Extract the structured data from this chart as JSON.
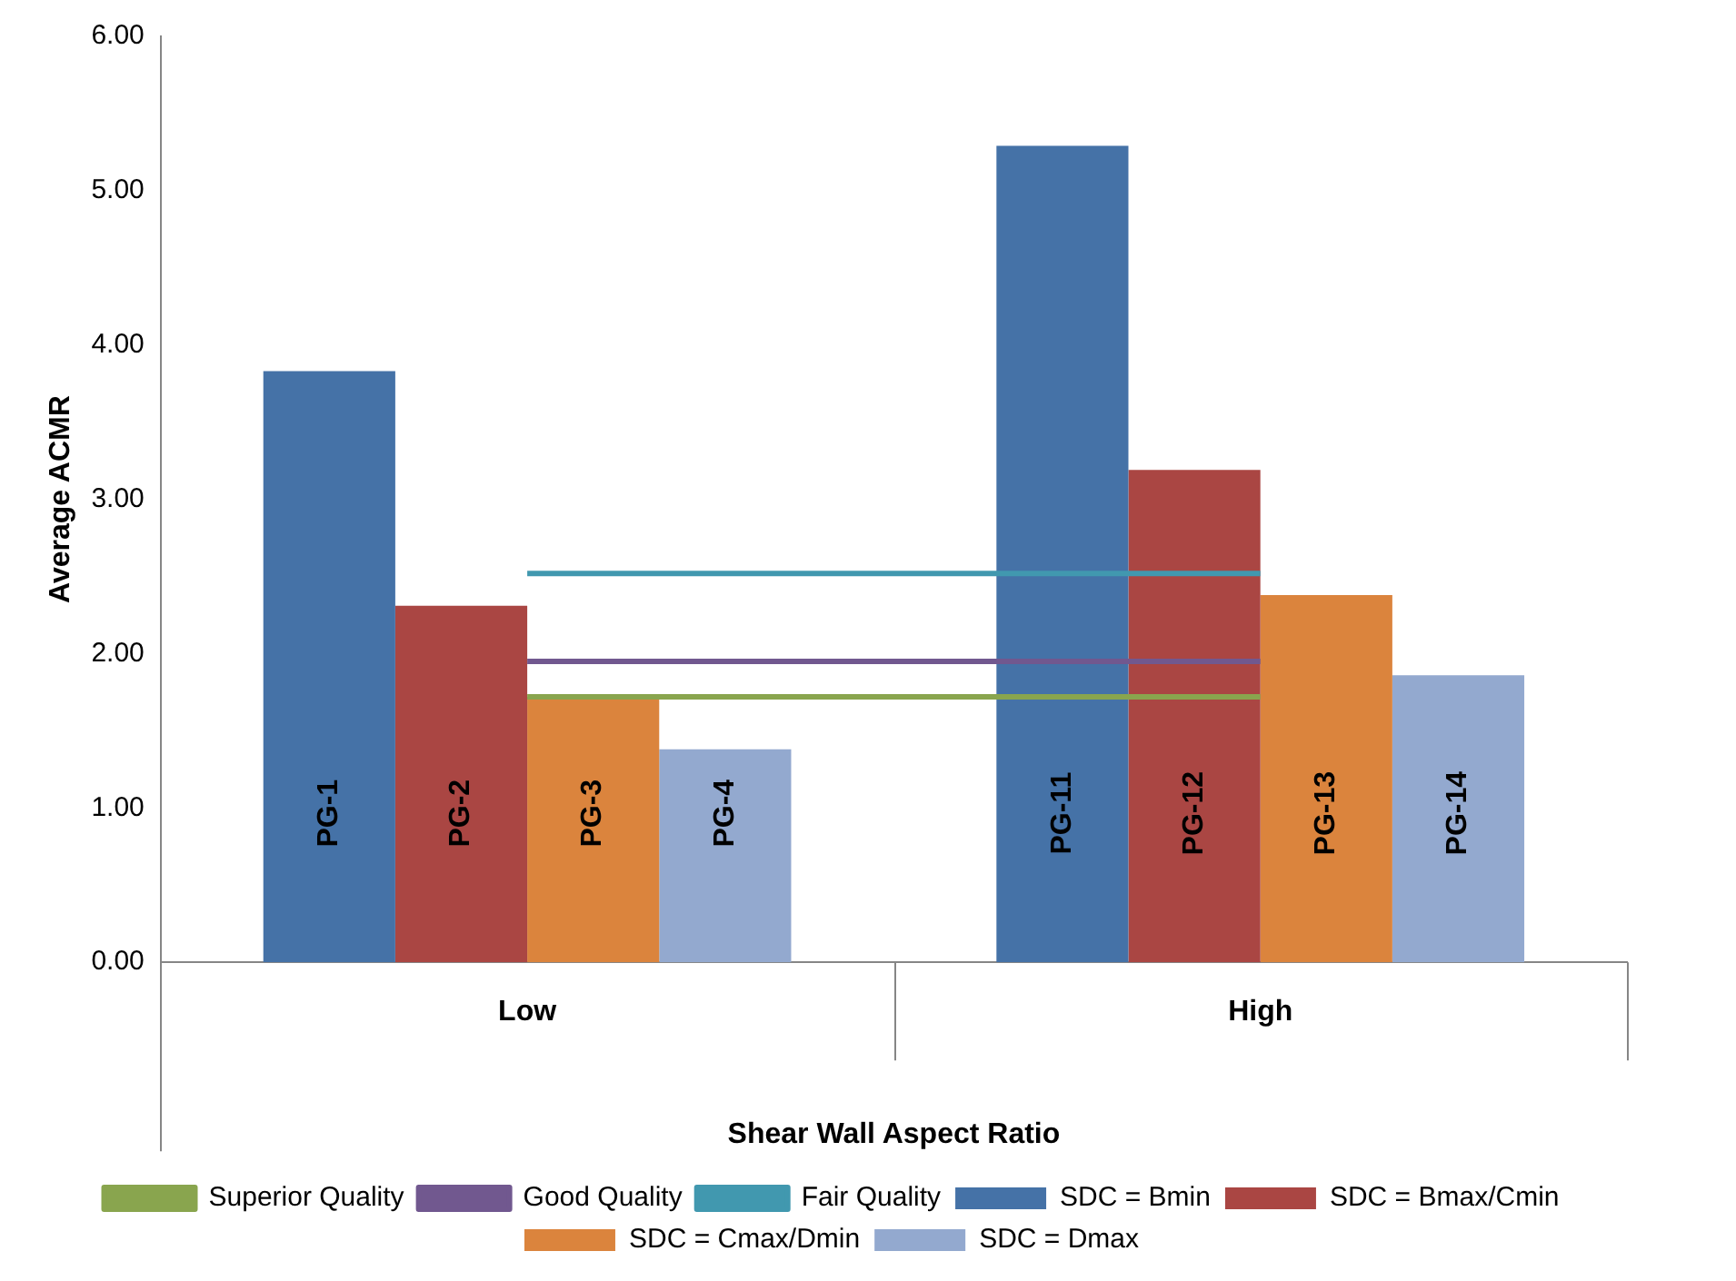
{
  "chart_data": {
    "type": "bar",
    "xlabel": "Shear Wall Aspect Ratio",
    "ylabel": "Average ACMR",
    "categories": [
      "Low",
      "High"
    ],
    "series": [
      {
        "name": "SDC = Bmin",
        "color": "#4572a7",
        "values": [
          3.83,
          5.29
        ],
        "value_labels": [
          "PG-1",
          "PG-11"
        ]
      },
      {
        "name": "SDC = Bmax/Cmin",
        "color": "#aa4643",
        "values": [
          2.31,
          3.19
        ],
        "value_labels": [
          "PG-2",
          "PG-12"
        ]
      },
      {
        "name": "SDC = Cmax/Dmin",
        "color": "#db843d",
        "values": [
          1.72,
          2.38
        ],
        "value_labels": [
          "PG-3",
          "PG-13"
        ]
      },
      {
        "name": "SDC = Dmax",
        "color": "#93a9cf",
        "values": [
          1.38,
          1.86
        ],
        "value_labels": [
          "PG-4",
          "PG-14"
        ]
      },
      {
        "name": "Superior Quality",
        "type": "line",
        "color": "#89a54e",
        "values": [
          1.72,
          1.72
        ]
      },
      {
        "name": "Good Quality",
        "type": "line",
        "color": "#71588f",
        "values": [
          1.95,
          1.95
        ]
      },
      {
        "name": "Fair Quality",
        "type": "line",
        "color": "#4198af",
        "values": [
          2.52,
          2.52
        ]
      }
    ],
    "ylim": [
      0,
      6
    ],
    "yticks": [
      {
        "value": 0,
        "label": "0.00"
      },
      {
        "value": 1,
        "label": "1.00"
      },
      {
        "value": 2,
        "label": "2.00"
      },
      {
        "value": 3,
        "label": "3.00"
      },
      {
        "value": 4,
        "label": "4.00"
      },
      {
        "value": 5,
        "label": "5.00"
      },
      {
        "value": 6,
        "label": "6.00"
      }
    ],
    "grid": false,
    "legend": "bottom",
    "marker": "none",
    "line_style": "solid"
  }
}
